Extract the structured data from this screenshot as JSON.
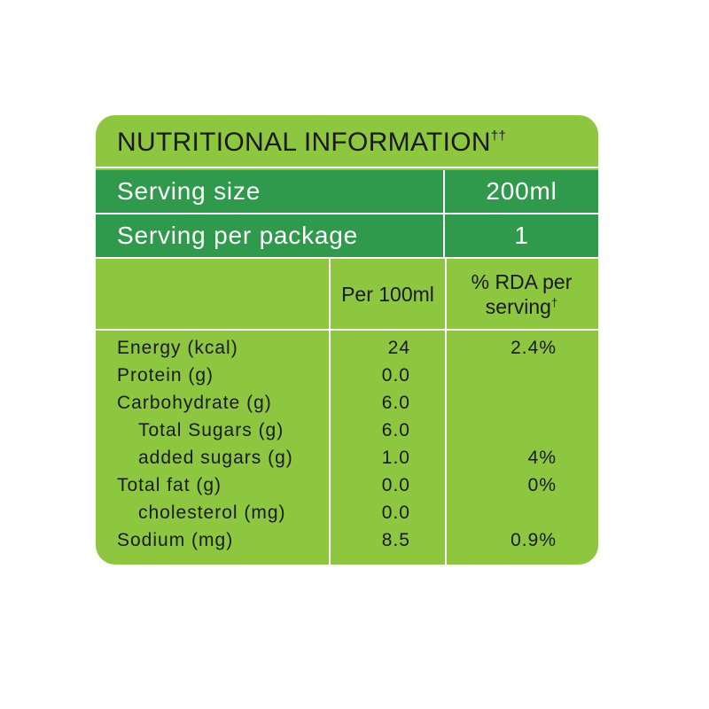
{
  "title": "NUTRITIONAL INFORMATION",
  "title_mark": "††",
  "serving": [
    {
      "label": "Serving size",
      "value": "200ml"
    },
    {
      "label": "Serving per package",
      "value": "1"
    }
  ],
  "columns": {
    "per_100ml": "Per 100ml",
    "rda": "% RDA per serving",
    "rda_mark": "†"
  },
  "rows": [
    {
      "name": "Energy (kcal)",
      "per_100ml": "24",
      "rda": "2.4%"
    },
    {
      "name": "Protein (g)",
      "per_100ml": "0.0"
    },
    {
      "name": "Carbohydrate (g)",
      "per_100ml": "6.0",
      "sub": [
        {
          "name": "Total Sugars (g)",
          "per_100ml": "6.0"
        },
        {
          "name": "added sugars (g)",
          "per_100ml": "1.0",
          "rda": "4%"
        }
      ]
    },
    {
      "name": "Total fat (g)",
      "per_100ml": "0.0",
      "rda": "0%",
      "sub": [
        {
          "name": "cholesterol (mg)",
          "per_100ml": "0.0"
        }
      ]
    },
    {
      "name": "Sodium (mg)",
      "per_100ml": "8.5",
      "rda": "0.9%"
    }
  ]
}
